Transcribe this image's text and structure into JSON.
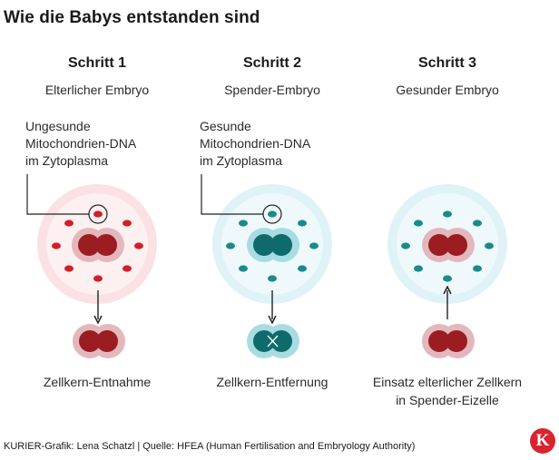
{
  "title": "Wie die Babys entstanden sind",
  "steps": [
    {
      "heading": "Schritt 1",
      "subtitle": "Elterlicher Embryo",
      "bottom_label": [
        "Zellkern-Entnahme"
      ]
    },
    {
      "heading": "Schritt 2",
      "subtitle": "Spender-Embryo",
      "bottom_label": [
        "Zellkern-Entfernung"
      ]
    },
    {
      "heading": "Schritt 3",
      "subtitle": "Gesunder Embryo",
      "bottom_label": [
        "Einsatz elterlicher Zellkern",
        "in Spender-Eizelle"
      ]
    }
  ],
  "callouts": {
    "unhealthy": [
      "Ungesunde",
      "Mitochondrien-DNA",
      "im Zytoplasma"
    ],
    "healthy": [
      "Gesunde",
      "Mitochondrien-DNA",
      "im Zytoplasma"
    ]
  },
  "colors": {
    "parent_ring": "#fbe1e3",
    "parent_inner": "#fdf0f1",
    "donor_ring": "#dff3f7",
    "donor_inner": "#eff9fb",
    "nucleus_red": "#9b1c21",
    "nucleus_red_halo": "#e3b8bc",
    "nucleus_teal": "#0f6b6b",
    "nucleus_teal_halo": "#a8dce2",
    "mito_red": "#d11f26",
    "mito_teal": "#1a8a8c",
    "logo": "#d9232e"
  },
  "footer": "KURIER-Grafik: Lena Schatzl | Quelle: HFEA (Human Fertilisation and Embryology Authority)",
  "logo_text": "K"
}
